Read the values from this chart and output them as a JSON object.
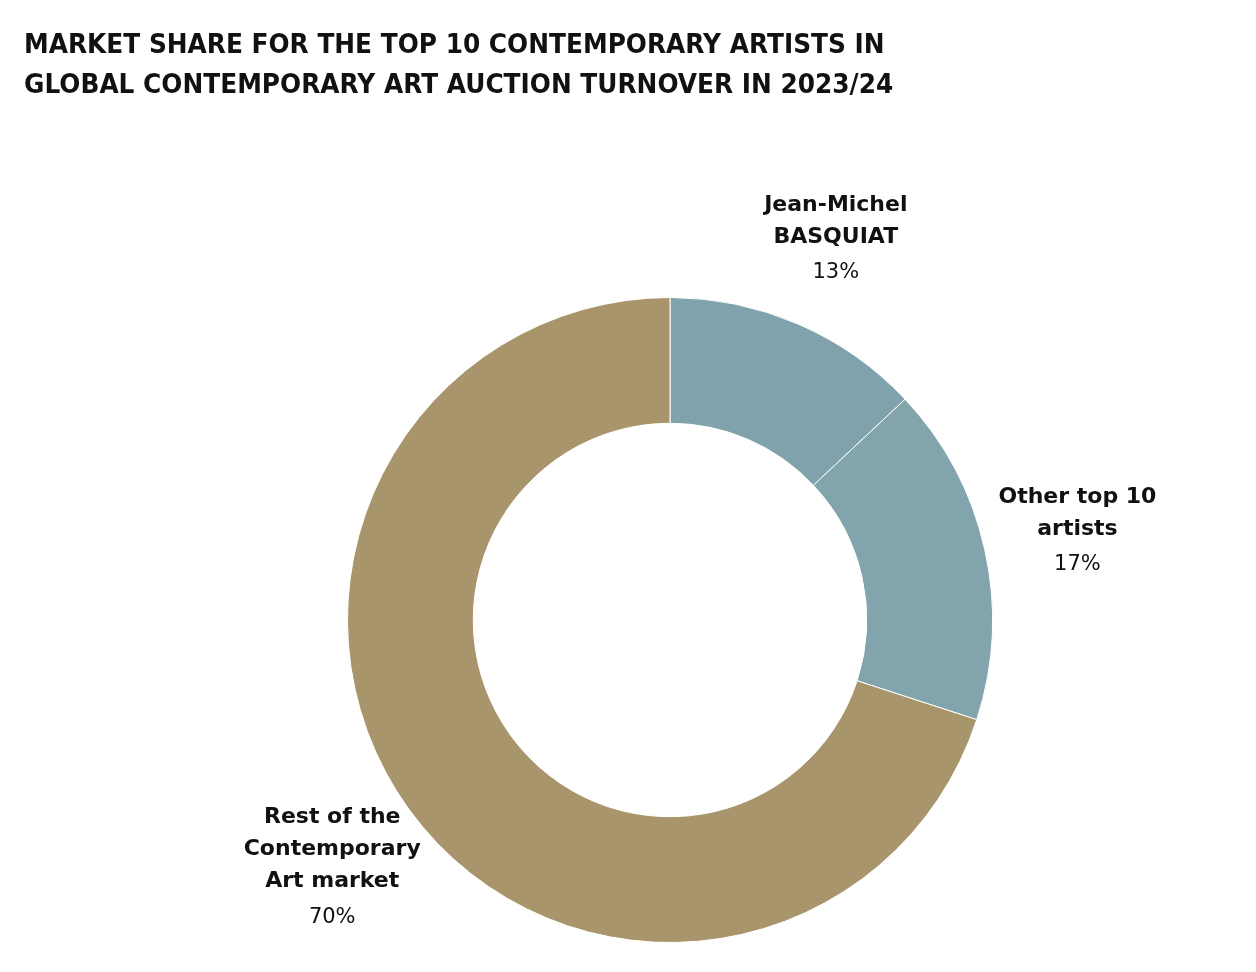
{
  "chart_data": {
    "type": "donut",
    "title": "MARKET SHARE FOR THE TOP 10 CONTEMPORARY ARTISTS IN GLOBAL CONTEMPORARY ART AUCTION TURNOVER IN 2023/24",
    "categories": [
      "Jean-Michel BASQUIAT",
      "Other top 10 artists",
      "Rest of the Contemporary Art market"
    ],
    "values": [
      13,
      17,
      70
    ],
    "colors": [
      "#7fa2ac",
      "#82a4ad",
      "#a9956b"
    ],
    "value_labels": [
      "13%",
      "17%",
      "70%"
    ],
    "legend": false
  }
}
